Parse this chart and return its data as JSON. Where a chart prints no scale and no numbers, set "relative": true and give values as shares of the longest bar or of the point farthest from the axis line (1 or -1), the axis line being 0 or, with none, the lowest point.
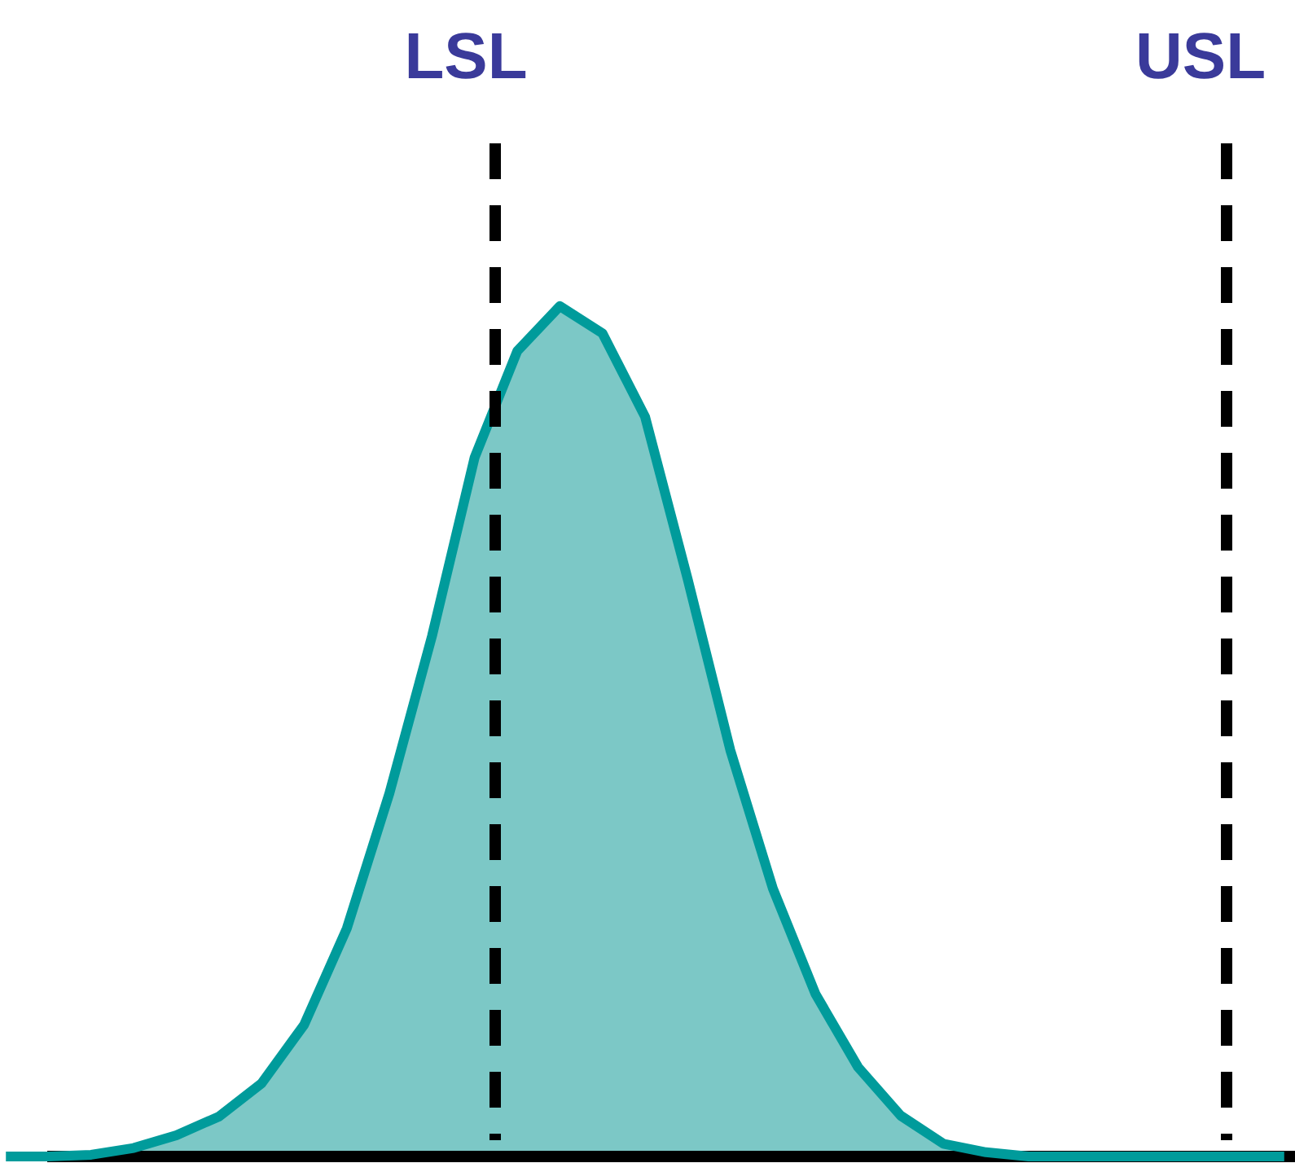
{
  "chart_data": {
    "type": "area",
    "relative": true,
    "tick_labels": false,
    "grid": false,
    "categories": [
      null,
      null,
      null,
      null,
      null,
      null,
      null,
      null,
      null,
      null,
      null,
      null,
      null,
      null,
      null,
      null,
      null,
      null,
      null,
      null,
      null,
      null,
      null,
      null,
      null,
      null,
      null,
      null,
      null,
      null,
      null
    ],
    "series": [
      {
        "color": "#009b9b",
        "values": [
          0,
          0,
          0.002,
          0.01,
          0.025,
          0.047,
          0.086,
          0.155,
          0.268,
          0.427,
          0.612,
          0.822,
          0.947,
          1,
          0.968,
          0.87,
          0.679,
          0.478,
          0.315,
          0.191,
          0.105,
          0.048,
          0.015,
          0.005,
          0,
          0,
          0,
          0,
          0,
          0,
          0
        ]
      }
    ],
    "annotations": [
      "LSL",
      "USL"
    ]
  }
}
